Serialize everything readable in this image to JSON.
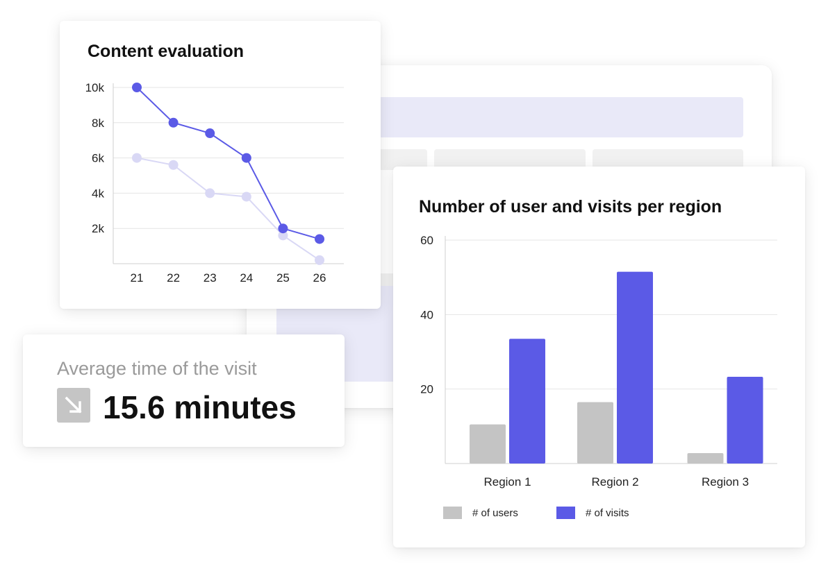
{
  "colors": {
    "accent": "#5b5ae6",
    "accent_light": "#d9d8f5",
    "gray_bar": "#c4c4c4",
    "grid": "#e4e4e4",
    "axis": "#cfcfcf"
  },
  "line_card": {
    "title": "Content evaluation"
  },
  "time_card": {
    "label": "Average time of the visit",
    "value": "15.6 minutes",
    "icon": "arrow-down-right-icon"
  },
  "bar_card": {
    "title": "Number of user and visits per region",
    "legend": [
      "# of users",
      "# of visits"
    ]
  },
  "chart_data": [
    {
      "type": "line",
      "title": "Content evaluation",
      "x": [
        21,
        22,
        23,
        24,
        25,
        26
      ],
      "y_ticks": [
        2000,
        4000,
        6000,
        8000,
        10000
      ],
      "y_tick_labels": [
        "2k",
        "4k",
        "6k",
        "8k",
        "10k"
      ],
      "ylim": [
        0,
        10000
      ],
      "grid": true,
      "series": [
        {
          "values": [
            10000,
            8000,
            7400,
            6000,
            2000,
            1400
          ],
          "color": "#5b5ae6"
        },
        {
          "values": [
            6000,
            5600,
            4000,
            3800,
            1600,
            200
          ],
          "color": "#d9d8f5"
        }
      ]
    },
    {
      "type": "bar",
      "title": "Number of user and visits per region",
      "categories": [
        "Region 1",
        "Region 2",
        "Region 3"
      ],
      "y_ticks": [
        20,
        40,
        60
      ],
      "ylim": [
        0,
        60
      ],
      "grid": true,
      "legend_position": "bottom-left",
      "series": [
        {
          "name": "# of users",
          "values": [
            10.5,
            16.5,
            2.8
          ],
          "color": "#c4c4c4"
        },
        {
          "name": "# of visits",
          "values": [
            33.5,
            51.5,
            23.3
          ],
          "color": "#5b5ae6"
        }
      ]
    }
  ]
}
